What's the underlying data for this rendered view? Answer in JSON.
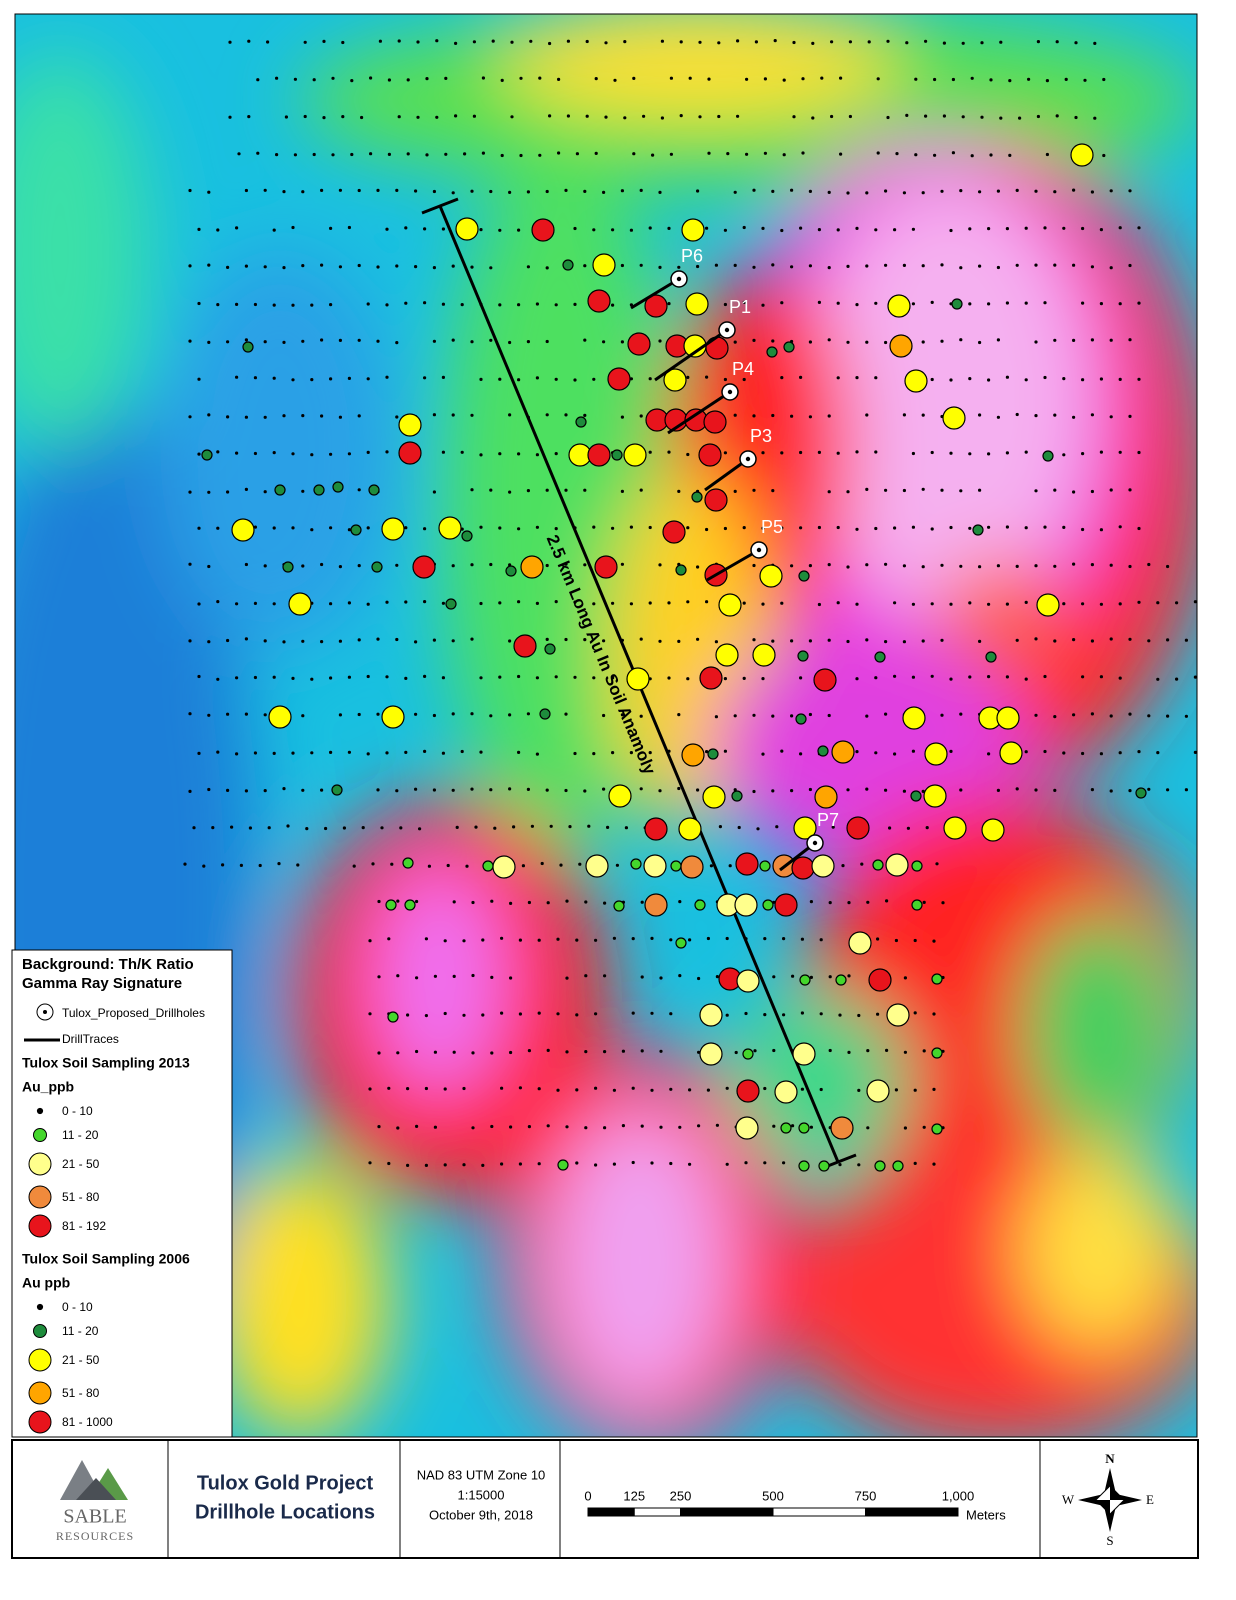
{
  "map": {
    "annotation": "2.5 km Long Au In Soil Anamoly",
    "drillholes": [
      "P1",
      "P3",
      "P4",
      "P5",
      "P6",
      "P7"
    ],
    "legend": {
      "title": "Background: Th/K Ratio",
      "subtitle": "Gamma Ray Signature",
      "drillholes": "Tulox_Proposed_Drillholes",
      "traces": "DrillTraces",
      "groups": [
        {
          "title": "Tulox Soil Sampling 2013",
          "field": "Au_ppb",
          "classes": [
            {
              "label": "0 - 10",
              "color": "#000000"
            },
            {
              "label": "11 - 20",
              "color": "#44d62c"
            },
            {
              "label": "21 - 50",
              "color": "#ffff8c"
            },
            {
              "label": "51 - 80",
              "color": "#f08a3c"
            },
            {
              "label": "81 - 192",
              "color": "#e8141c"
            }
          ]
        },
        {
          "title": "Tulox Soil Sampling 2006",
          "field": "Au ppb",
          "classes": [
            {
              "label": "0 - 10",
              "color": "#000000"
            },
            {
              "label": "11 - 20",
              "color": "#1e8c3c"
            },
            {
              "label": "21 - 50",
              "color": "#ffff00"
            },
            {
              "label": "51 - 80",
              "color": "#ffa500"
            },
            {
              "label": "81 - 1000",
              "color": "#e8141c"
            }
          ]
        }
      ]
    },
    "footer": {
      "logo": {
        "name": "SABLE",
        "sub": "RESOURCES"
      },
      "title": [
        "Tulox Gold Project",
        "Drillhole Locations"
      ],
      "projection": [
        "NAD 83 UTM Zone 10",
        "1:15000",
        "October 9th, 2018"
      ],
      "scale": {
        "ticks": [
          "0",
          "125",
          "250",
          "500",
          "750",
          "1,000"
        ],
        "unit": "Meters"
      },
      "compass": {
        "n": "N",
        "s": "S",
        "e": "E",
        "w": "W"
      }
    }
  }
}
